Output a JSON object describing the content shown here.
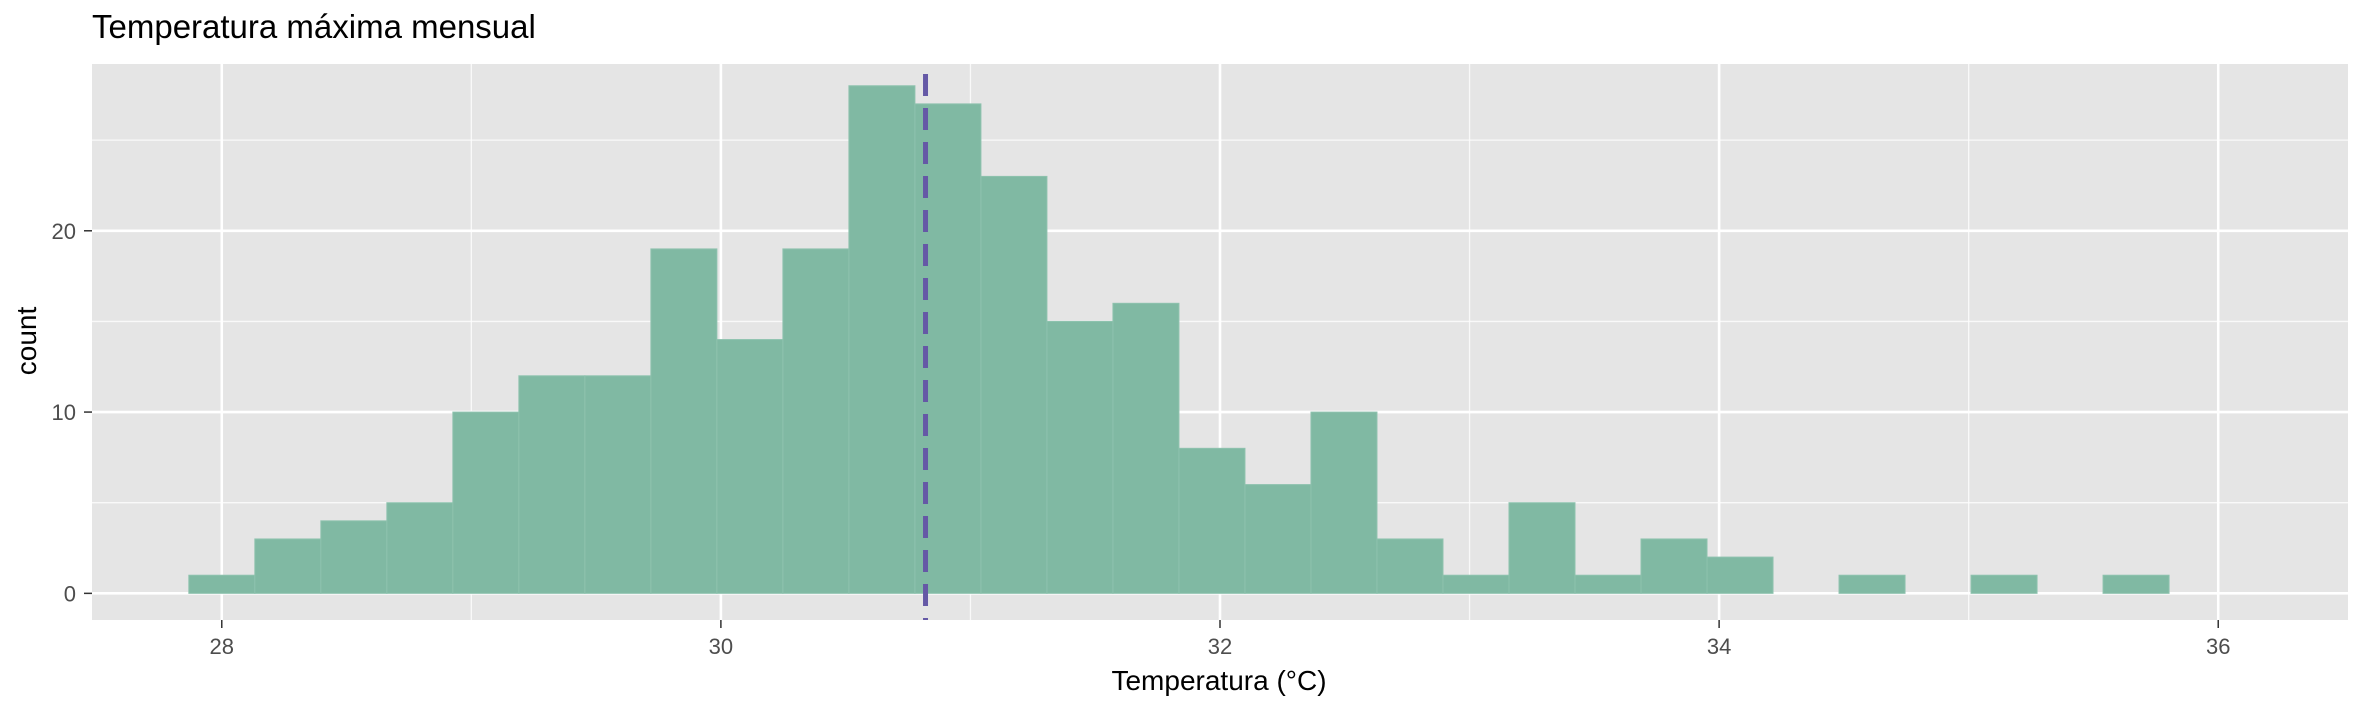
{
  "chart_data": {
    "type": "bar",
    "title": "Temperatura máxima mensual",
    "xlabel": "Temperatura (°C)",
    "ylabel": "count",
    "xlim": [
      27.48,
      36.52
    ],
    "ylim": [
      -1.47,
      29.2
    ],
    "x_ticks": [
      28,
      30,
      32,
      34,
      36
    ],
    "y_ticks": [
      0,
      10,
      20
    ],
    "bin_width": 0.2645,
    "bin_starts": [
      27.868,
      28.1325,
      28.397,
      28.6615,
      28.926,
      29.1905,
      29.455,
      29.7195,
      29.984,
      30.2485,
      30.513,
      30.7775,
      31.042,
      31.3065,
      31.571,
      31.8355,
      32.1,
      32.3645,
      32.629,
      32.8935,
      33.158,
      33.4225,
      33.687,
      33.9515,
      34.216,
      34.4805,
      34.745,
      35.0095,
      35.274,
      35.5385
    ],
    "counts": [
      1,
      3,
      4,
      5,
      10,
      12,
      12,
      19,
      14,
      19,
      28,
      27,
      23,
      15,
      16,
      8,
      6,
      10,
      3,
      1,
      5,
      1,
      3,
      2,
      0,
      1,
      0,
      1,
      0,
      1
    ],
    "mean_line": 30.82,
    "grid": true,
    "colors": {
      "panel": "#e5e5e5",
      "grid_major": "#ffffff",
      "bar_fill": "#80b9a3",
      "bar_stroke": "#8ec2ae",
      "mean_line": "#6559a6",
      "tick_text": "#4d4d4d",
      "tick_mark": "#333333",
      "title_text": "#000000"
    }
  }
}
